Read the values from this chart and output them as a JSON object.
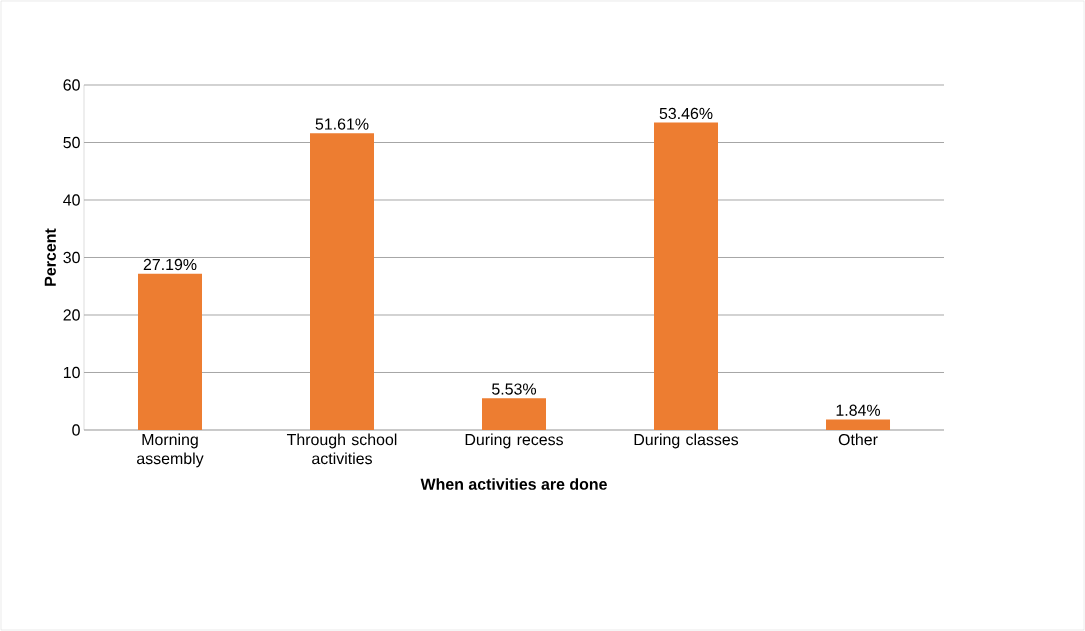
{
  "chart_data": {
    "type": "bar",
    "xlabel": "When activities are done",
    "ylabel": "Percent",
    "categories": [
      "Morning assembly",
      "Through school activities",
      "During recess",
      "During classes",
      "Other"
    ],
    "values": [
      27.19,
      51.61,
      5.53,
      53.46,
      1.84
    ],
    "value_labels": [
      "27.19%",
      "51.61%",
      "5.53%",
      "53.46%",
      "1.84%"
    ],
    "color": "#ed7d31",
    "ylim": [
      0,
      60
    ],
    "yticks": [
      0,
      10,
      20,
      30,
      40,
      50,
      60
    ],
    "grid": "y",
    "legend": false
  }
}
